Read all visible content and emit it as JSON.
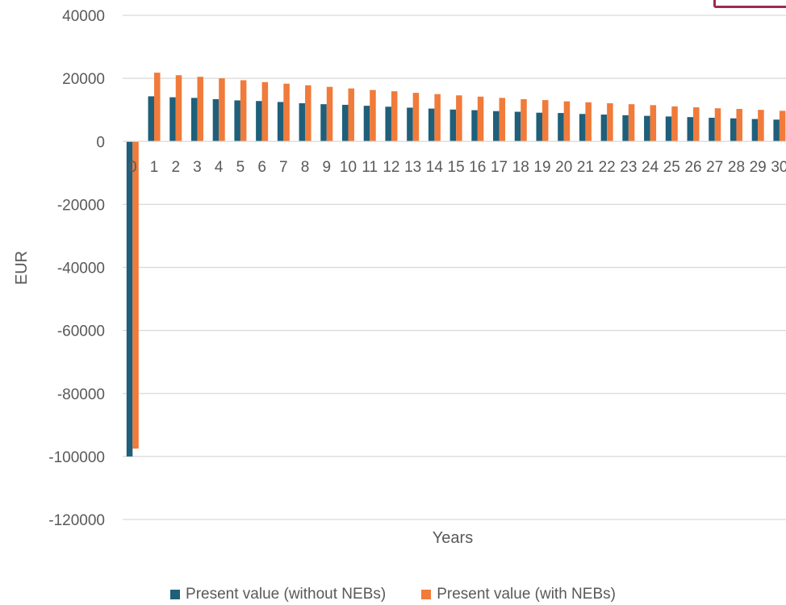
{
  "chart_data": {
    "type": "bar",
    "title": "",
    "xlabel": "Years",
    "ylabel": "EUR",
    "ylim": [
      -120000,
      40000
    ],
    "yticks": [
      40000,
      20000,
      0,
      -20000,
      -40000,
      -60000,
      -80000,
      -100000,
      -120000
    ],
    "grid": true,
    "legend_position": "bottom",
    "categories": [
      "0",
      "1",
      "2",
      "3",
      "4",
      "5",
      "6",
      "7",
      "8",
      "9",
      "10",
      "11",
      "12",
      "13",
      "14",
      "15",
      "16",
      "17",
      "18",
      "19",
      "20",
      "21",
      "22",
      "23",
      "24",
      "25",
      "26",
      "27",
      "28",
      "29",
      "30"
    ],
    "series": [
      {
        "name": "Present value (without NEBs)",
        "color": "#1f5f7a",
        "values": [
          -100000,
          14300,
          14000,
          13800,
          13400,
          13000,
          12800,
          12500,
          12100,
          11800,
          11600,
          11300,
          11000,
          10700,
          10400,
          10100,
          9900,
          9600,
          9400,
          9100,
          9000,
          8700,
          8500,
          8300,
          8100,
          7900,
          7700,
          7500,
          7300,
          7100,
          6900
        ]
      },
      {
        "name": "Present value (with NEBs)",
        "color": "#f07b3a",
        "values": [
          -97500,
          21800,
          21000,
          20500,
          20000,
          19400,
          18800,
          18300,
          17800,
          17300,
          16800,
          16300,
          15900,
          15400,
          15000,
          14600,
          14200,
          13800,
          13400,
          13100,
          12700,
          12400,
          12100,
          11800,
          11500,
          11100,
          10800,
          10500,
          10300,
          10000,
          9700
        ]
      }
    ]
  }
}
